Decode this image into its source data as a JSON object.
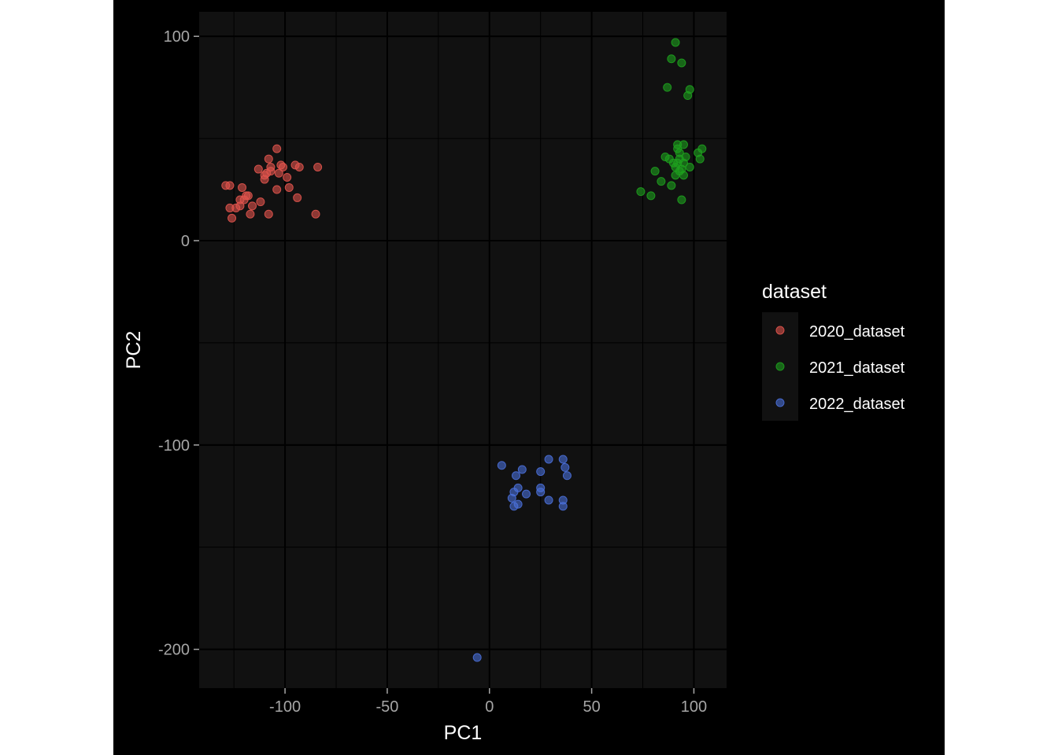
{
  "chart_data": {
    "type": "scatter",
    "xlabel": "PC1",
    "ylabel": "PC2",
    "xlim": [
      -142,
      116
    ],
    "ylim": [
      -219,
      112
    ],
    "xticks": [
      -100,
      -50,
      0,
      50,
      100
    ],
    "yticks": [
      -200,
      -100,
      0,
      100
    ],
    "x_tick_labels": [
      "-100",
      "-50",
      "0",
      "50",
      "100"
    ],
    "y_tick_labels": [
      "-200",
      "-100",
      "0",
      "100"
    ],
    "grid": true,
    "background": "#111111",
    "legend": {
      "title": "dataset",
      "position": "right"
    },
    "series": [
      {
        "name": "2020_dataset",
        "color": "#e0544c",
        "points": [
          [
            -129,
            27
          ],
          [
            -127,
            27
          ],
          [
            -127,
            16
          ],
          [
            -126,
            11
          ],
          [
            -124,
            16
          ],
          [
            -122,
            17
          ],
          [
            -122,
            20
          ],
          [
            -121,
            26
          ],
          [
            -120,
            20
          ],
          [
            -119,
            22
          ],
          [
            -118,
            22
          ],
          [
            -117,
            13
          ],
          [
            -116,
            17
          ],
          [
            -112,
            19
          ],
          [
            -113,
            35
          ],
          [
            -110,
            30
          ],
          [
            -110,
            32
          ],
          [
            -109,
            33
          ],
          [
            -108,
            40
          ],
          [
            -108,
            13
          ],
          [
            -107,
            36
          ],
          [
            -107,
            34
          ],
          [
            -104,
            25
          ],
          [
            -104,
            45
          ],
          [
            -103,
            33
          ],
          [
            -102,
            37
          ],
          [
            -101,
            36
          ],
          [
            -99,
            31
          ],
          [
            -98,
            26
          ],
          [
            -95,
            37
          ],
          [
            -94,
            21
          ],
          [
            -93,
            36
          ],
          [
            -85,
            13
          ],
          [
            -84,
            36
          ]
        ]
      },
      {
        "name": "2021_dataset",
        "color": "#1ea01e",
        "points": [
          [
            91,
            97
          ],
          [
            89,
            89
          ],
          [
            94,
            87
          ],
          [
            87,
            75
          ],
          [
            98,
            74
          ],
          [
            97,
            71
          ],
          [
            92,
            47
          ],
          [
            95,
            47
          ],
          [
            92,
            45
          ],
          [
            104,
            45
          ],
          [
            93,
            43
          ],
          [
            102,
            43
          ],
          [
            86,
            41
          ],
          [
            88,
            40
          ],
          [
            96,
            41
          ],
          [
            93,
            40
          ],
          [
            103,
            40
          ],
          [
            90,
            38
          ],
          [
            92,
            38
          ],
          [
            95,
            38
          ],
          [
            98,
            36
          ],
          [
            91,
            36
          ],
          [
            94,
            35
          ],
          [
            81,
            34
          ],
          [
            93,
            34
          ],
          [
            91,
            32
          ],
          [
            95,
            32
          ],
          [
            84,
            29
          ],
          [
            89,
            27
          ],
          [
            74,
            24
          ],
          [
            79,
            22
          ],
          [
            94,
            20
          ]
        ]
      },
      {
        "name": "2022_dataset",
        "color": "#4a6fd8",
        "points": [
          [
            29,
            -107
          ],
          [
            36,
            -107
          ],
          [
            6,
            -110
          ],
          [
            37,
            -111
          ],
          [
            16,
            -112
          ],
          [
            25,
            -113
          ],
          [
            13,
            -115
          ],
          [
            38,
            -115
          ],
          [
            14,
            -121
          ],
          [
            25,
            -121
          ],
          [
            12,
            -123
          ],
          [
            18,
            -124
          ],
          [
            25,
            -123
          ],
          [
            11,
            -126
          ],
          [
            29,
            -127
          ],
          [
            36,
            -127
          ],
          [
            14,
            -129
          ],
          [
            12,
            -130
          ],
          [
            36,
            -130
          ],
          [
            -6,
            -204
          ]
        ]
      }
    ]
  }
}
